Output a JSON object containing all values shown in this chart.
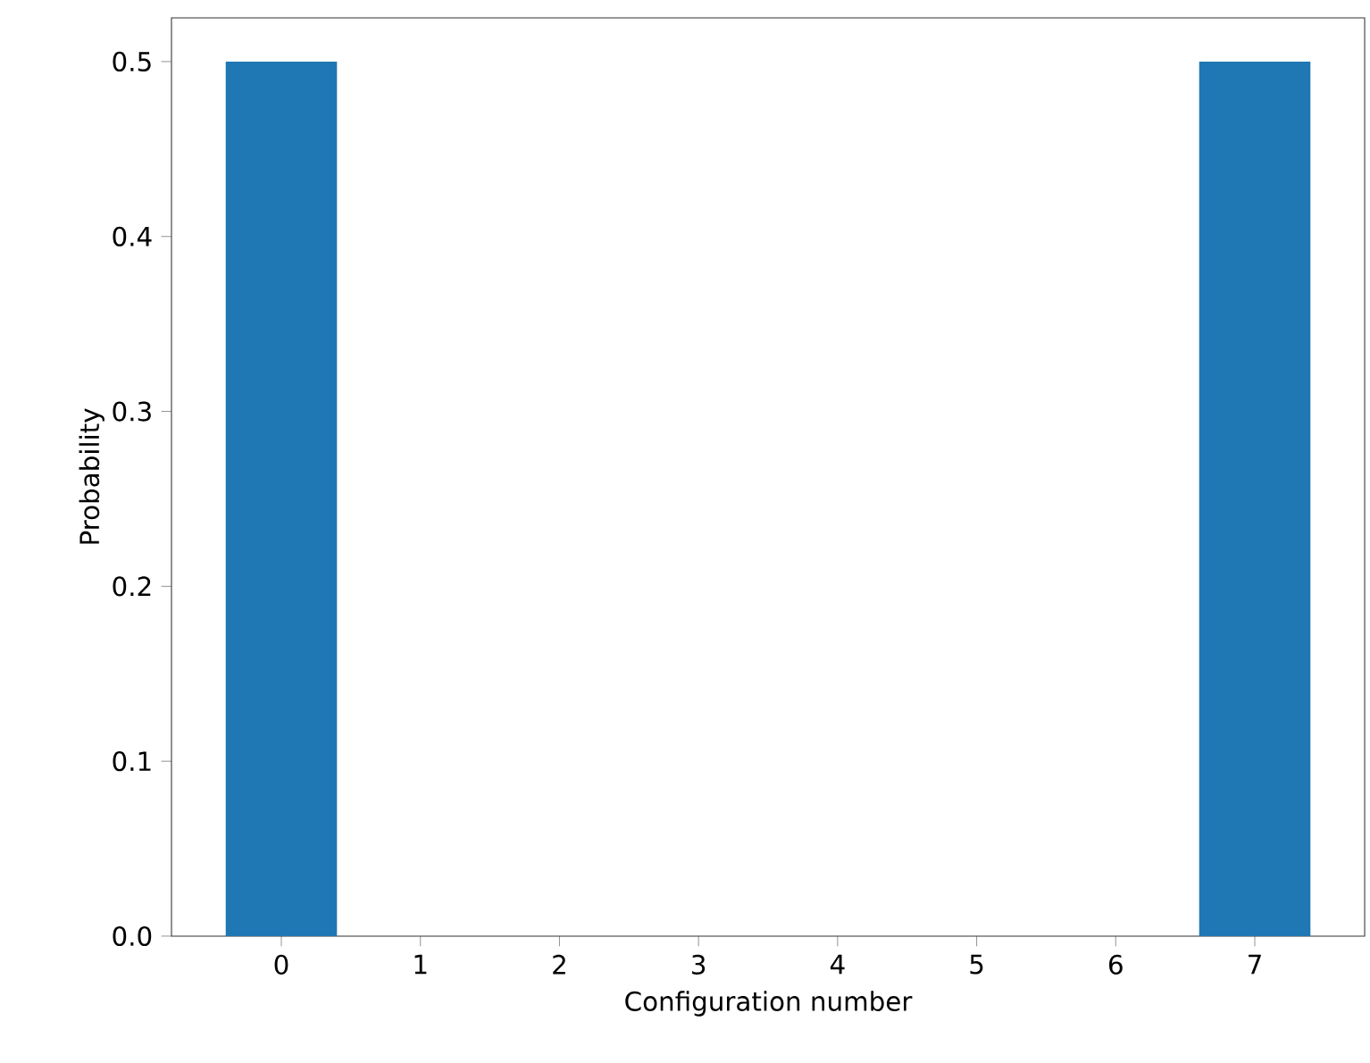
{
  "chart_data": {
    "type": "bar",
    "xlabel": "Configuration number",
    "ylabel": "Probability",
    "categories": [
      "0",
      "1",
      "2",
      "3",
      "4",
      "5",
      "6",
      "7"
    ],
    "values": [
      0.5,
      0,
      0,
      0,
      0,
      0,
      0,
      0.5
    ],
    "color": "#1f77b4",
    "ylim": [
      0,
      0.525
    ],
    "yticks": [
      {
        "value": 0,
        "label": "0.0"
      },
      {
        "value": 0.1,
        "label": "0.1"
      },
      {
        "value": 0.2,
        "label": "0.2"
      },
      {
        "value": 0.3,
        "label": "0.3"
      },
      {
        "value": 0.4,
        "label": "0.4"
      },
      {
        "value": 0.5,
        "label": "0.5"
      }
    ]
  }
}
